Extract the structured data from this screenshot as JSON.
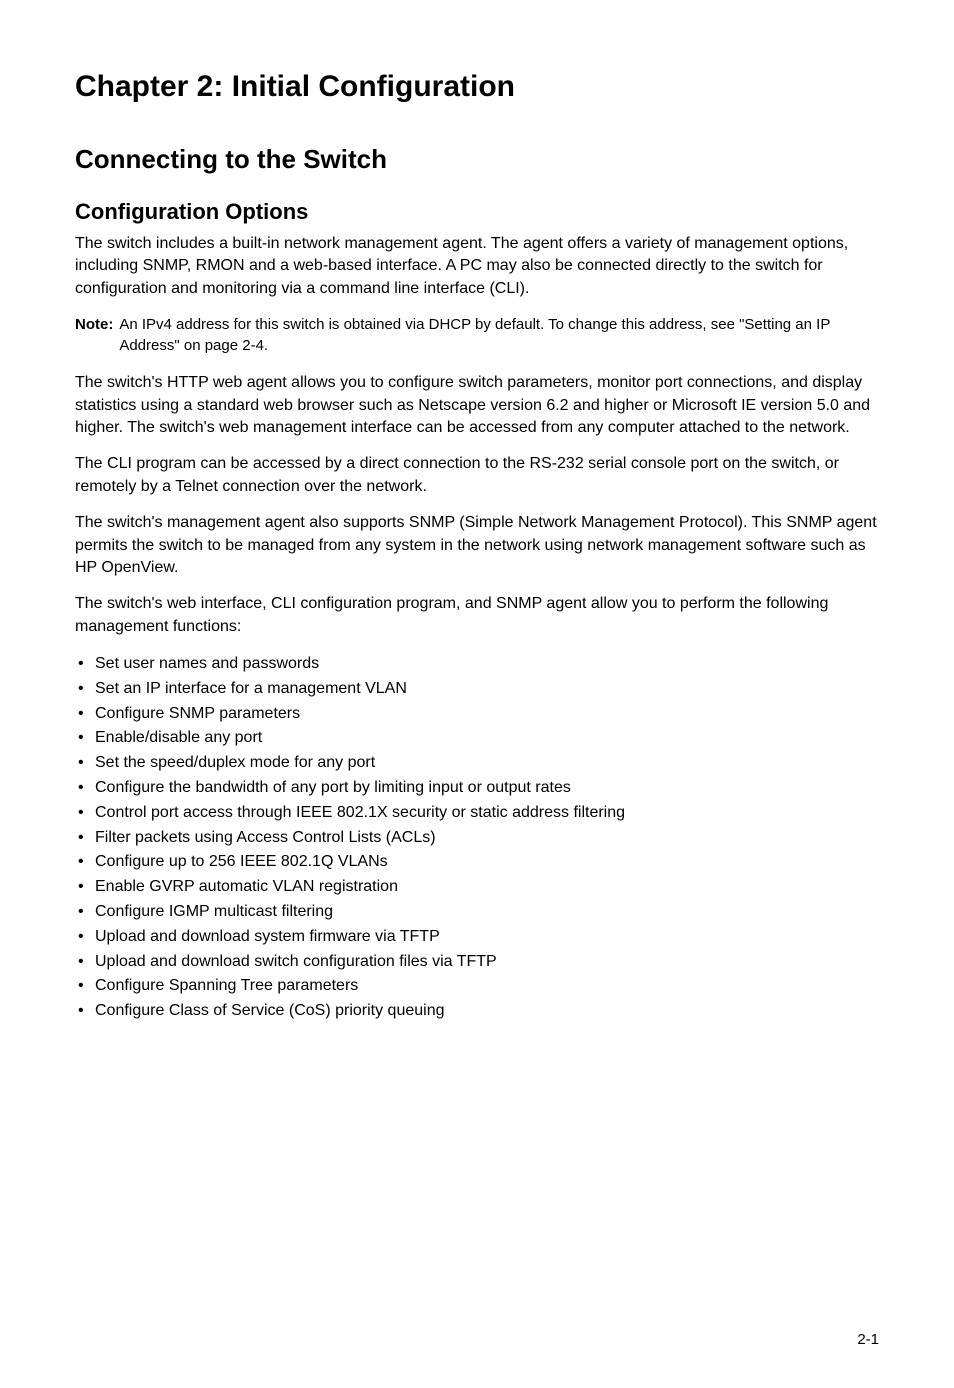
{
  "chapter": {
    "title": "Chapter 2: Initial Configuration"
  },
  "section": {
    "title": "Connecting to the Switch"
  },
  "subsection": {
    "title": "Configuration Options"
  },
  "paragraphs": {
    "p1": "The switch includes a built-in network management agent. The agent offers a variety of management options, including SNMP, RMON and a web-based interface. A PC may also be connected directly to the switch for configuration and monitoring via a command line interface (CLI).",
    "p2": "The switch's HTTP web agent allows you to configure switch parameters, monitor port connections, and display statistics using a standard web browser such as Netscape version 6.2 and higher or Microsoft IE version 5.0 and higher. The switch's web management interface can be accessed from any computer attached to the network.",
    "p3": "The CLI program can be accessed by a direct connection to the RS-232 serial console port on the switch, or remotely by a Telnet connection over the network.",
    "p4": "The switch's management agent also supports SNMP (Simple Network Management Protocol). This SNMP agent permits the switch to be managed from any system in the network using network management software such as HP OpenView.",
    "p5": "The switch's web interface, CLI configuration program, and SNMP agent allow you to perform the following management functions:"
  },
  "note": {
    "label": "Note:",
    "text": "An IPv4 address for this switch is obtained via DHCP by default. To change this address, see \"Setting an IP Address\" on page 2-4."
  },
  "bullets": [
    "Set user names and passwords",
    "Set an IP interface for a management VLAN",
    "Configure SNMP parameters",
    "Enable/disable any port",
    "Set the speed/duplex mode for any port",
    "Configure the bandwidth of any port by limiting input or output rates",
    "Control port access through IEEE 802.1X security or static address filtering",
    "Filter packets using Access Control Lists (ACLs)",
    "Configure up to 256 IEEE 802.1Q VLANs",
    "Enable GVRP automatic VLAN registration",
    "Configure IGMP multicast filtering",
    "Upload and download system firmware via TFTP",
    "Upload and download switch configuration files via TFTP",
    "Configure Spanning Tree parameters",
    "Configure Class of Service (CoS) priority queuing"
  ],
  "page_number": "2-1",
  "styles": {
    "background_color": "#ffffff",
    "text_color": "#000000",
    "font_family": "Arial, Helvetica, sans-serif",
    "chapter_fontsize": 30,
    "section_fontsize": 26,
    "subsection_fontsize": 22,
    "body_fontsize": 16,
    "note_fontsize": 15
  }
}
